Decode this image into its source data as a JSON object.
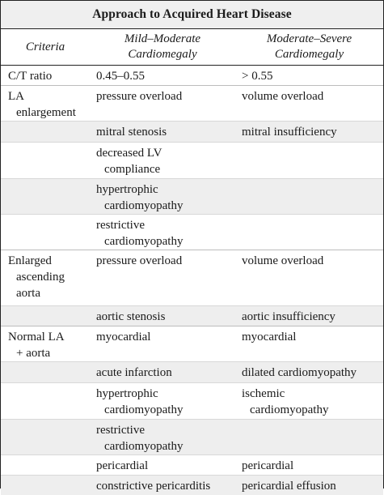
{
  "title": "Approach to Acquired Heart Disease",
  "headers": {
    "criteria": "Criteria",
    "mild": [
      "Mild–Moderate",
      "Cardiomegaly"
    ],
    "severe": [
      "Moderate–Severe",
      "Cardiomegaly"
    ]
  },
  "rows": [
    {
      "criteria": [
        "C/T ratio"
      ],
      "mild": [
        "0.45–0.55"
      ],
      "severe": [
        "> 0.55"
      ]
    },
    {
      "criteria": [
        "LA",
        "enlargement"
      ],
      "mild": [
        "pressure overload"
      ],
      "severe": [
        "volume overload"
      ]
    },
    {
      "criteria": [],
      "mild": [
        "mitral stenosis"
      ],
      "severe": [
        "mitral insufficiency"
      ]
    },
    {
      "criteria": [],
      "mild": [
        "decreased LV",
        "compliance"
      ],
      "severe": []
    },
    {
      "criteria": [],
      "mild": [
        "hypertrophic",
        "cardiomyopathy"
      ],
      "severe": []
    },
    {
      "criteria": [],
      "mild": [
        "restrictive",
        "cardiomyopathy"
      ],
      "severe": []
    },
    {
      "criteria": [
        "Enlarged",
        "ascending",
        "aorta"
      ],
      "mild": [
        "pressure overload"
      ],
      "severe": [
        "volume overload"
      ]
    },
    {
      "criteria": [],
      "mild": [
        "aortic stenosis"
      ],
      "severe": [
        "aortic insufficiency"
      ]
    },
    {
      "criteria": [
        "Normal LA",
        "+ aorta"
      ],
      "mild": [
        "myocardial"
      ],
      "severe": [
        "myocardial"
      ]
    },
    {
      "criteria": [],
      "mild": [
        "acute infarction"
      ],
      "severe": [
        "dilated cardiomyopathy"
      ]
    },
    {
      "criteria": [],
      "mild": [
        "hypertrophic",
        "cardiomyopathy"
      ],
      "severe": [
        "ischemic",
        "cardiomyopathy"
      ]
    },
    {
      "criteria": [],
      "mild": [
        "restrictive",
        "cardiomyopathy"
      ],
      "severe": []
    },
    {
      "criteria": [],
      "mild": [
        "pericardial"
      ],
      "severe": [
        "pericardial"
      ]
    },
    {
      "criteria": [],
      "mild": [
        "constrictive pericarditis"
      ],
      "severe": [
        "pericardial effusion"
      ]
    }
  ]
}
